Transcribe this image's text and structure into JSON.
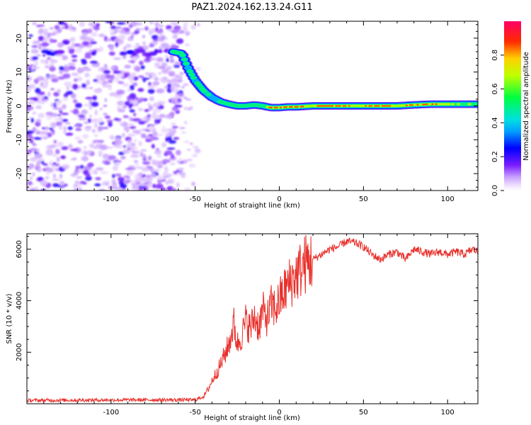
{
  "figure": {
    "title": "PAZ1.2024.162.13.24.G11"
  },
  "chart_data": [
    {
      "type": "heatmap",
      "xlabel": "Height of straight line (km)",
      "ylabel": "Frequency (Hz)",
      "xlim": [
        -150,
        118
      ],
      "ylim": [
        -25,
        25
      ],
      "xticks": [
        -100,
        -50,
        0,
        50,
        100
      ],
      "yticks": [
        -20,
        -10,
        0,
        10,
        20
      ],
      "xtick_labels": [
        "-100",
        "-50",
        "0",
        "50",
        "100"
      ],
      "ytick_labels": [
        "-20",
        "-10",
        "0",
        "10",
        "20"
      ],
      "colormap": "rainbow",
      "colorbar": {
        "label": "Normalized spectral amplitude",
        "range": [
          0,
          1
        ],
        "ticks": [
          0.0,
          0.2,
          0.4,
          0.6,
          0.8
        ],
        "tick_labels": [
          "0.0",
          "0.2",
          "0.4",
          "0.6",
          "0.8"
        ]
      },
      "noise_region_x": [
        -150,
        -60
      ],
      "ridge": {
        "x": [
          -63,
          -58,
          -54,
          -50,
          -45,
          -40,
          -35,
          -30,
          -25,
          -20,
          -15,
          -10,
          -5,
          0,
          5,
          10,
          20,
          30,
          40,
          50,
          60,
          70,
          80,
          90,
          100,
          110,
          118
        ],
        "frequency": [
          16,
          15.5,
          11,
          7.5,
          4.5,
          2.5,
          1.2,
          0.5,
          0,
          0,
          0.3,
          0,
          -0.5,
          -0.5,
          -0.3,
          -0.3,
          0,
          0,
          0,
          0,
          0,
          0,
          0.3,
          0.5,
          0.5,
          0.5,
          0.5
        ],
        "amplitude": [
          0.55,
          0.55,
          0.45,
          0.5,
          0.45,
          0.4,
          0.45,
          0.5,
          0.55,
          0.45,
          0.55,
          0.55,
          0.85,
          0.9,
          0.85,
          0.95,
          0.75,
          0.9,
          0.85,
          0.75,
          0.9,
          0.7,
          0.85,
          0.9,
          0.7,
          0.6,
          0.5
        ]
      }
    },
    {
      "type": "line",
      "xlabel": "Height of straight line (km)",
      "ylabel": "SNR (10 * v/v)",
      "xlim": [
        -150,
        118
      ],
      "ylim": [
        0,
        6600
      ],
      "xticks": [
        -100,
        -50,
        0,
        50,
        100
      ],
      "yticks": [
        2000,
        4000,
        6000
      ],
      "xtick_labels": [
        "-100",
        "-50",
        "0",
        "50",
        "100"
      ],
      "ytick_labels": [
        "2000",
        "4000",
        "6000"
      ],
      "series": [
        {
          "color": "#e8302b",
          "x": [
            -150,
            -120,
            -90,
            -60,
            -50,
            -45,
            -42,
            -40,
            -35,
            -30,
            -27,
            -25,
            -22,
            -20,
            -17,
            -15,
            -12,
            -10,
            -7,
            -5,
            -2,
            0,
            5,
            10,
            15,
            20,
            25,
            30,
            35,
            40,
            45,
            50,
            55,
            60,
            65,
            70,
            75,
            80,
            85,
            90,
            95,
            100,
            105,
            110,
            115,
            118
          ],
          "values": [
            130,
            140,
            150,
            150,
            150,
            280,
            600,
            900,
            1500,
            2300,
            3100,
            2300,
            2700,
            3200,
            2900,
            3400,
            3000,
            3600,
            3300,
            3800,
            3700,
            4000,
            4600,
            5000,
            5400,
            5600,
            5800,
            6000,
            6100,
            6300,
            6250,
            6100,
            5800,
            5600,
            5800,
            5900,
            5600,
            6000,
            5900,
            5800,
            5900,
            5800,
            5900,
            5800,
            6000,
            5900
          ]
        }
      ]
    }
  ]
}
